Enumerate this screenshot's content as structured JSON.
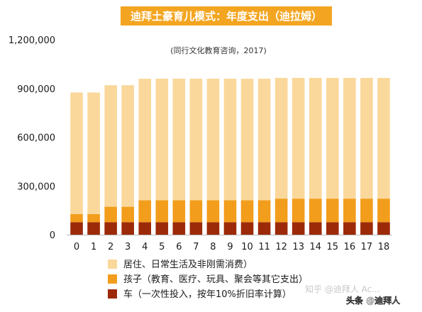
{
  "chart_data": {
    "type": "bar",
    "stacked": true,
    "title": "迪拜土豪育儿模式：年度支出（迪拉姆）",
    "subtitle": "(同行文化教育咨询，2017)",
    "xlabel": "",
    "ylabel": "",
    "ylim": [
      0,
      1200000
    ],
    "yticks": [
      0,
      300000,
      600000,
      900000,
      1200000
    ],
    "ytick_labels": [
      "0",
      "300,000",
      "600,000",
      "900,000",
      "1,200,000"
    ],
    "grid": false,
    "legend_position": "bottom-left",
    "categories": [
      "0",
      "1",
      "2",
      "3",
      "4",
      "5",
      "6",
      "7",
      "8",
      "9",
      "10",
      "11",
      "12",
      "13",
      "14",
      "15",
      "16",
      "17",
      "18"
    ],
    "series": [
      {
        "name": "车（一次性投入，按年10%折旧率计算）",
        "color": "#9c2a09",
        "values": [
          77000,
          77000,
          77000,
          77000,
          77000,
          77000,
          77000,
          77000,
          77000,
          77000,
          77000,
          77000,
          77000,
          77000,
          77000,
          77000,
          77000,
          77000,
          77000
        ]
      },
      {
        "name": "孩子（教育、医疗、玩具、聚会等其它支出）",
        "color": "#f29d1b",
        "values": [
          50000,
          50000,
          95000,
          95000,
          135000,
          135000,
          135000,
          135000,
          135000,
          135000,
          135000,
          135000,
          145000,
          145000,
          145000,
          145000,
          145000,
          145000,
          145000
        ]
      },
      {
        "name": "居住、日常生活及非刚需消费）",
        "color": "#fad89b",
        "values": [
          748000,
          748000,
          748000,
          748000,
          748000,
          748000,
          748000,
          748000,
          748000,
          748000,
          748000,
          748000,
          743000,
          743000,
          743000,
          743000,
          743000,
          743000,
          743000
        ]
      }
    ]
  },
  "watermarks": [
    "知乎 @迪拜人 Ac...",
    "头条 @迪拜人"
  ],
  "title_banner_color": "#f3a521"
}
